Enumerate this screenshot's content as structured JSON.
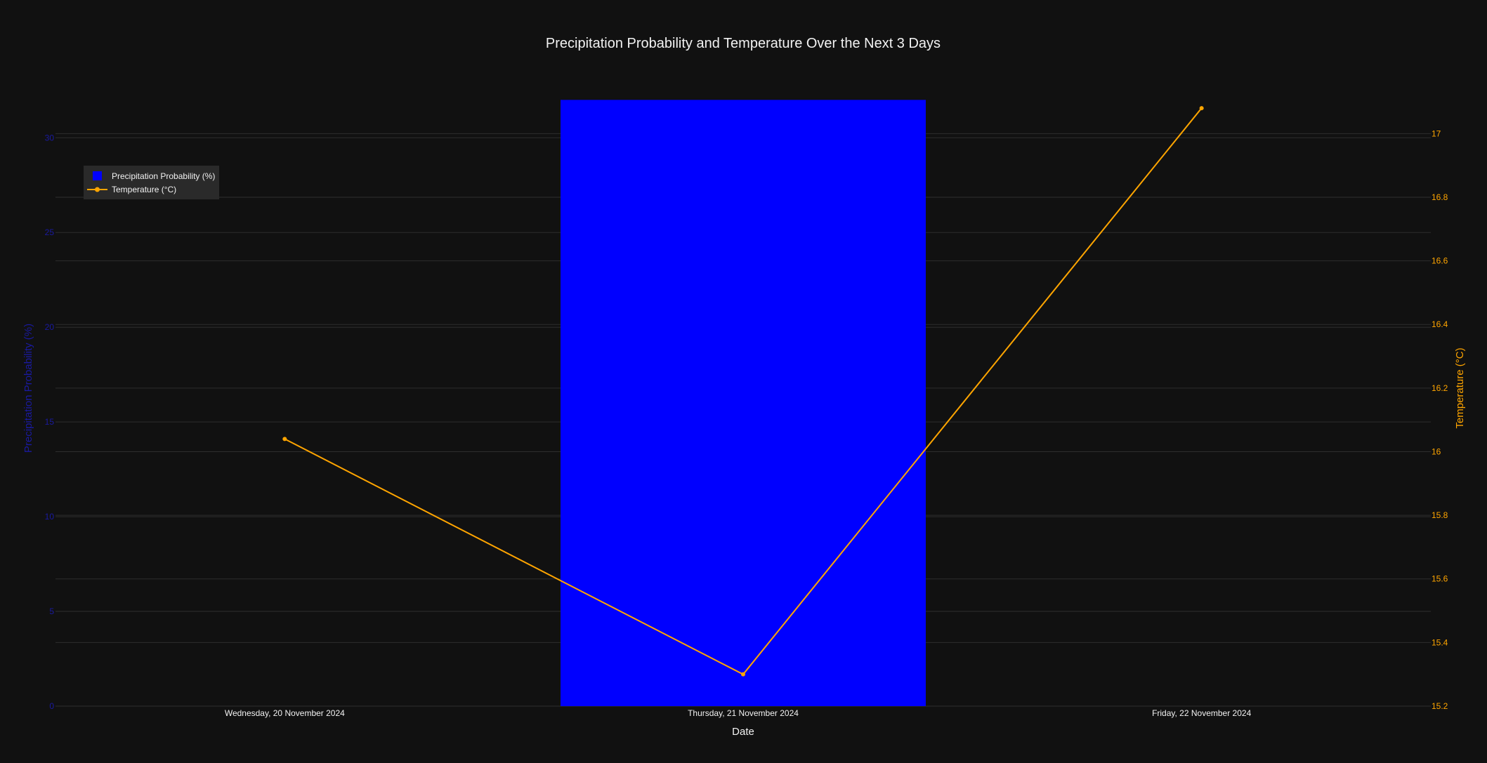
{
  "chart_data": {
    "type": "bar+line",
    "title": "Precipitation Probability and Temperature Over the Next 3 Days",
    "xlabel": "Date",
    "categories": [
      "Wednesday, 20 November 2024",
      "Thursday, 21 November 2024",
      "Friday, 22 November 2024"
    ],
    "series": [
      {
        "name": "Precipitation Probability (%)",
        "type": "bar",
        "axis": "left",
        "values": [
          0,
          32,
          0
        ],
        "color": "#0000ff"
      },
      {
        "name": "Temperature (°C)",
        "type": "line",
        "axis": "right",
        "values": [
          16.04,
          15.3,
          17.08
        ],
        "color": "#ffa500"
      }
    ],
    "y_left": {
      "label": "Precipitation Probability (%)",
      "range": [
        0,
        31.9
      ],
      "ticks": [
        0,
        5,
        10,
        15,
        20,
        25,
        30
      ],
      "color": "#1a1aa0"
    },
    "y_right": {
      "label": "Temperature (°C)",
      "range": [
        15.2,
        17.1
      ],
      "ticks": [
        15.2,
        15.4,
        15.6,
        15.8,
        16,
        16.2,
        16.4,
        16.6,
        16.8,
        17
      ],
      "color": "#ffa500"
    },
    "grid": true,
    "legend_position": "top-left",
    "colors": {
      "background": "#111111",
      "grid": "#2e2e2e",
      "text": "#f2f2f2",
      "legend_bg": "#2a2a2a"
    }
  }
}
